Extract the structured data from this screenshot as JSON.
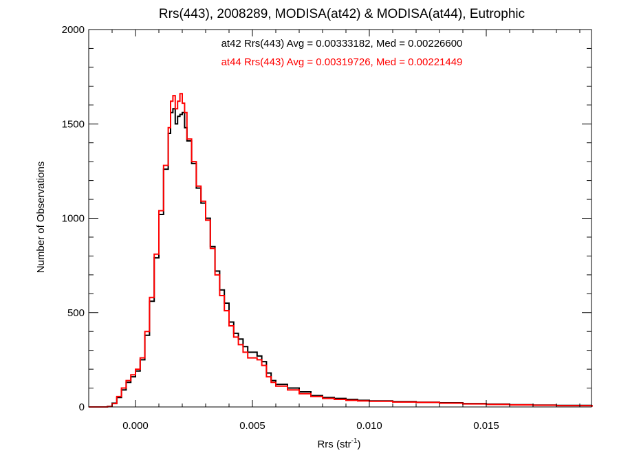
{
  "chart_data": {
    "type": "line",
    "title": "Rrs(443), 2008289, MODISA(at42) & MODISA(at44), Eutrophic",
    "xlabel": "Rrs (str",
    "xlabel_sup": "-1",
    "xlabel_suffix": ")",
    "ylabel": "Number of Observations",
    "xlim": [
      -0.002,
      0.0195
    ],
    "ylim": [
      0,
      2000
    ],
    "x_ticks": [
      0.0,
      0.005,
      0.01,
      0.015
    ],
    "x_tick_labels": [
      "0.000",
      "0.005",
      "0.010",
      "0.015"
    ],
    "y_ticks": [
      0,
      500,
      1000,
      1500,
      2000
    ],
    "y_tick_labels": [
      "0",
      "500",
      "1000",
      "1500",
      "2000"
    ],
    "grid": false,
    "annotations": [
      {
        "text": "at42 Rrs(443) Avg = 0.00333182, Med = 0.00226600",
        "color": "#000000"
      },
      {
        "text": "at44 Rrs(443) Avg = 0.00319726, Med = 0.00221449",
        "color": "#ff0000"
      }
    ],
    "series": [
      {
        "color": "#000000",
        "points": [
          [
            -0.002,
            0
          ],
          [
            -0.0015,
            0
          ],
          [
            -0.0012,
            3
          ],
          [
            -0.001,
            20
          ],
          [
            -0.0008,
            50
          ],
          [
            -0.0006,
            90
          ],
          [
            -0.0004,
            130
          ],
          [
            -0.0002,
            160
          ],
          [
            0.0,
            190
          ],
          [
            0.0002,
            250
          ],
          [
            0.0004,
            380
          ],
          [
            0.0006,
            560
          ],
          [
            0.0008,
            790
          ],
          [
            0.001,
            1020
          ],
          [
            0.0012,
            1260
          ],
          [
            0.0014,
            1450
          ],
          [
            0.0015,
            1560
          ],
          [
            0.0016,
            1580
          ],
          [
            0.0017,
            1500
          ],
          [
            0.0018,
            1540
          ],
          [
            0.0019,
            1550
          ],
          [
            0.002,
            1560
          ],
          [
            0.0021,
            1480
          ],
          [
            0.0022,
            1410
          ],
          [
            0.0024,
            1290
          ],
          [
            0.0026,
            1160
          ],
          [
            0.0028,
            1080
          ],
          [
            0.003,
            1000
          ],
          [
            0.0032,
            850
          ],
          [
            0.0034,
            720
          ],
          [
            0.0036,
            620
          ],
          [
            0.0038,
            550
          ],
          [
            0.004,
            450
          ],
          [
            0.0042,
            390
          ],
          [
            0.0044,
            360
          ],
          [
            0.0046,
            320
          ],
          [
            0.0048,
            290
          ],
          [
            0.005,
            290
          ],
          [
            0.0052,
            270
          ],
          [
            0.0054,
            240
          ],
          [
            0.0056,
            180
          ],
          [
            0.0058,
            140
          ],
          [
            0.006,
            120
          ],
          [
            0.0065,
            100
          ],
          [
            0.007,
            80
          ],
          [
            0.0075,
            60
          ],
          [
            0.008,
            50
          ],
          [
            0.0085,
            45
          ],
          [
            0.009,
            40
          ],
          [
            0.0095,
            35
          ],
          [
            0.01,
            32
          ],
          [
            0.011,
            28
          ],
          [
            0.012,
            25
          ],
          [
            0.013,
            22
          ],
          [
            0.014,
            18
          ],
          [
            0.015,
            15
          ],
          [
            0.016,
            12
          ],
          [
            0.017,
            10
          ],
          [
            0.018,
            8
          ],
          [
            0.019,
            8
          ],
          [
            0.0195,
            6
          ]
        ]
      },
      {
        "color": "#ff0000",
        "points": [
          [
            -0.002,
            0
          ],
          [
            -0.0015,
            0
          ],
          [
            -0.0012,
            2
          ],
          [
            -0.001,
            18
          ],
          [
            -0.0008,
            55
          ],
          [
            -0.0006,
            100
          ],
          [
            -0.0004,
            140
          ],
          [
            -0.0002,
            170
          ],
          [
            0.0,
            200
          ],
          [
            0.0002,
            260
          ],
          [
            0.0004,
            400
          ],
          [
            0.0006,
            580
          ],
          [
            0.0008,
            810
          ],
          [
            0.001,
            1040
          ],
          [
            0.0012,
            1280
          ],
          [
            0.0014,
            1480
          ],
          [
            0.0015,
            1620
          ],
          [
            0.0016,
            1650
          ],
          [
            0.0017,
            1580
          ],
          [
            0.0018,
            1620
          ],
          [
            0.0019,
            1660
          ],
          [
            0.002,
            1610
          ],
          [
            0.0021,
            1560
          ],
          [
            0.0022,
            1420
          ],
          [
            0.0024,
            1300
          ],
          [
            0.0026,
            1170
          ],
          [
            0.0028,
            1090
          ],
          [
            0.003,
            990
          ],
          [
            0.0032,
            840
          ],
          [
            0.0034,
            700
          ],
          [
            0.0036,
            590
          ],
          [
            0.0038,
            510
          ],
          [
            0.004,
            430
          ],
          [
            0.0042,
            370
          ],
          [
            0.0044,
            330
          ],
          [
            0.0046,
            290
          ],
          [
            0.0048,
            260
          ],
          [
            0.005,
            260
          ],
          [
            0.0052,
            250
          ],
          [
            0.0054,
            220
          ],
          [
            0.0056,
            160
          ],
          [
            0.0058,
            130
          ],
          [
            0.006,
            110
          ],
          [
            0.0065,
            90
          ],
          [
            0.007,
            70
          ],
          [
            0.0075,
            55
          ],
          [
            0.008,
            45
          ],
          [
            0.0085,
            40
          ],
          [
            0.009,
            35
          ],
          [
            0.0095,
            32
          ],
          [
            0.01,
            30
          ],
          [
            0.011,
            26
          ],
          [
            0.012,
            24
          ],
          [
            0.013,
            20
          ],
          [
            0.014,
            16
          ],
          [
            0.015,
            13
          ],
          [
            0.016,
            11
          ],
          [
            0.017,
            9
          ],
          [
            0.018,
            7
          ],
          [
            0.019,
            7
          ],
          [
            0.0195,
            5
          ]
        ]
      }
    ]
  }
}
